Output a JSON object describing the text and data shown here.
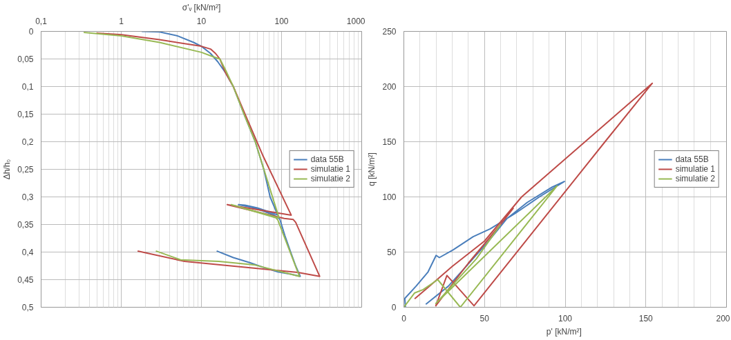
{
  "chart_data": [
    {
      "type": "line",
      "xlabel": "σ'ᵥ [kN/m²]",
      "ylabel": "Δh/h₀",
      "log": "x",
      "xlim": [
        0.1,
        1000
      ],
      "ylim": [
        0.5,
        0
      ],
      "xticks": [
        {
          "value": 0.1,
          "label": "0,1"
        },
        1,
        10,
        100,
        1000
      ],
      "yticks": [
        0,
        {
          "value": 0.05,
          "label": "0,05"
        },
        {
          "value": 0.1,
          "label": "0,1"
        },
        {
          "value": 0.15,
          "label": "0,15"
        },
        {
          "value": 0.2,
          "label": "0,2"
        },
        {
          "value": 0.25,
          "label": "0,25"
        },
        {
          "value": 0.3,
          "label": "0,3"
        },
        {
          "value": 0.35,
          "label": "0,35"
        },
        {
          "value": 0.4,
          "label": "0,4"
        },
        {
          "value": 0.45,
          "label": "0,45"
        },
        {
          "value": 0.5,
          "label": "0,5"
        }
      ],
      "grid": true,
      "legend": "right",
      "line_style": "solid",
      "marker": "none",
      "series": [
        {
          "name": "data 55B",
          "color": "#4a7ebb",
          "x": [
            1.8,
            3,
            5,
            8,
            10,
            13,
            16,
            20,
            25,
            34,
            47,
            60,
            72,
            85,
            90,
            70,
            50,
            35,
            29,
            40,
            60,
            80,
            90,
            95,
            110,
            130,
            150,
            171,
            130,
            90,
            60,
            40,
            25,
            15.5
          ],
          "values": [
            0,
            0.001,
            0.008,
            0.02,
            0.027,
            0.04,
            0.055,
            0.075,
            0.1,
            0.15,
            0.2,
            0.25,
            0.3,
            0.325,
            0.333,
            0.327,
            0.32,
            0.315,
            0.314,
            0.318,
            0.326,
            0.333,
            0.338,
            0.34,
            0.37,
            0.4,
            0.425,
            0.444,
            0.44,
            0.436,
            0.428,
            0.419,
            0.41,
            0.398
          ]
        },
        {
          "name": "simulatie 1",
          "color": "#be4b48",
          "x": [
            0.49,
            1,
            3,
            10,
            13,
            15,
            17,
            20,
            25,
            35,
            58,
            132,
            21,
            108,
            140,
            150,
            299,
            160,
            6.2,
            1.6
          ],
          "values": [
            0.003,
            0.006,
            0.015,
            0.027,
            0.032,
            0.04,
            0.05,
            0.075,
            0.1,
            0.15,
            0.224,
            0.333,
            0.314,
            0.339,
            0.341,
            0.346,
            0.444,
            0.437,
            0.417,
            0.398
          ]
        },
        {
          "name": "simulatie 2",
          "color": "#98b954",
          "x": [
            0.34,
            1,
            3,
            10,
            14,
            17,
            20,
            25,
            34,
            47,
            93,
            23.6,
            85,
            90,
            167,
            45,
            16.5,
            5.5,
            2.7
          ],
          "values": [
            0.002,
            0.008,
            0.02,
            0.038,
            0.046,
            0.05,
            0.07,
            0.1,
            0.15,
            0.2,
            0.338,
            0.314,
            0.338,
            0.342,
            0.444,
            0.423,
            0.417,
            0.414,
            0.398
          ]
        }
      ]
    },
    {
      "type": "line",
      "xlabel": "p'  [kN/m²]",
      "ylabel": "q [kN/m²]",
      "xlim": [
        0,
        200
      ],
      "ylim": [
        0,
        250
      ],
      "xticks": [
        0,
        50,
        100,
        150,
        200
      ],
      "yticks": [
        0,
        50,
        100,
        150,
        200,
        250
      ],
      "grid": true,
      "legend": "right",
      "line_style": "solid",
      "marker": "none",
      "series": [
        {
          "name": "data 55B",
          "color": "#4a7ebb",
          "x": [
            1,
            0.6,
            7.5,
            15,
            20,
            22,
            30.5,
            43,
            53.5,
            69,
            84,
            99.5,
            92,
            76.5,
            64,
            52,
            38,
            27.5,
            13.6
          ],
          "values": [
            0,
            8,
            19,
            32,
            47,
            45,
            52,
            64,
            71,
            85,
            100,
            114,
            109,
            95,
            80.5,
            59,
            36,
            19,
            2.7
          ]
        },
        {
          "name": "simulatie 1",
          "color": "#be4b48",
          "x": [
            6.7,
            15,
            30,
            50,
            73,
            154,
            124.7,
            43.5,
            26.7,
            19.8,
            40,
            60,
            68
          ],
          "values": [
            7.6,
            18,
            37,
            60,
            100,
            203,
            150,
            1.3,
            28.8,
            1.3,
            40,
            75,
            90
          ]
        },
        {
          "name": "simulatie 2",
          "color": "#98b954",
          "x": [
            0,
            6.7,
            12,
            21,
            35,
            95,
            19.8,
            45,
            60
          ],
          "values": [
            0,
            13,
            16,
            25,
            0,
            110,
            3.4,
            44,
            75
          ]
        }
      ]
    }
  ]
}
